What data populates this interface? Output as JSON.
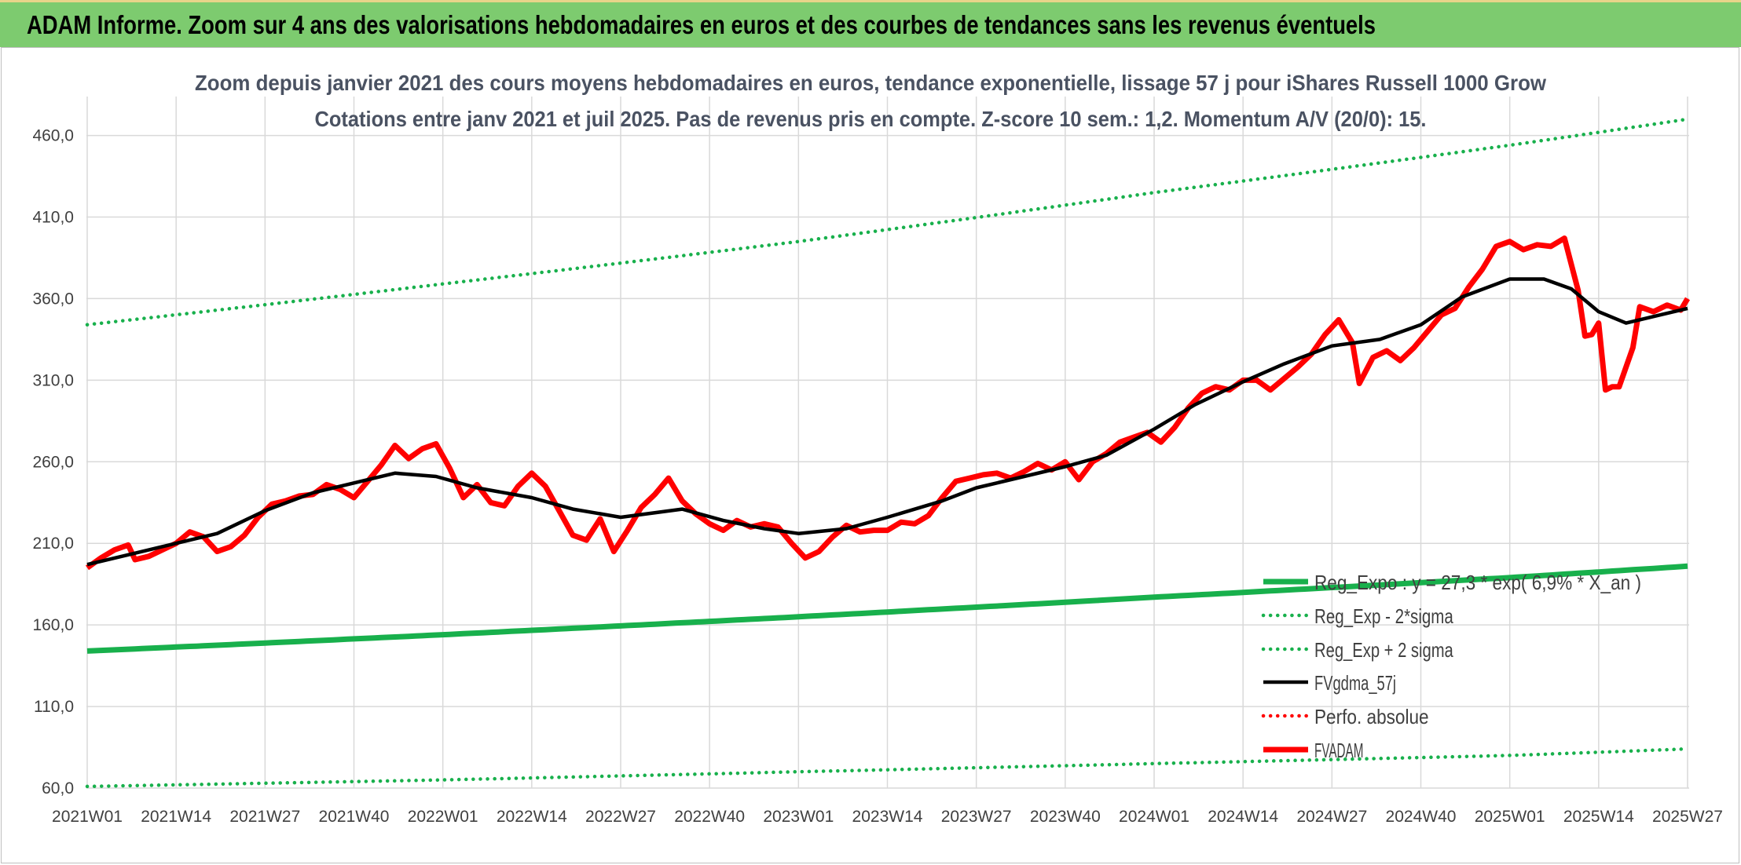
{
  "header": {
    "title": "ADAM Informe. Zoom sur 4 ans des valorisations hebdomadaires en euros et des courbes de tendances sans les revenus éventuels"
  },
  "colors": {
    "banner": "#7dcb6f",
    "trend_green": "#18b04c",
    "fvadam_red": "#ff0000",
    "fvgdma_black": "#000000",
    "grid": "#d9d9d9"
  },
  "chart_data": {
    "type": "line",
    "title": "Zoom depuis janvier 2021 des cours moyens hebdomadaires en euros, tendance exponentielle, lissage 57 j pour iShares Russell 1000 Grow",
    "subtitle": "Cotations entre janv 2021 et juil 2025. Pas de revenus pris en compte. Z-score 10 sem.: 1,2. Momentum A/V (20/0): 15.",
    "xlabel": "",
    "ylabel": "",
    "ylim": [
      60,
      480
    ],
    "yticks": [
      "60,0",
      "110,0",
      "160,0",
      "210,0",
      "260,0",
      "310,0",
      "360,0",
      "410,0",
      "460,0"
    ],
    "ytick_values": [
      60,
      110,
      160,
      210,
      260,
      310,
      360,
      410,
      460
    ],
    "xticks": [
      "2021W01",
      "2021W14",
      "2021W27",
      "2021W40",
      "2022W01",
      "2022W14",
      "2022W27",
      "2022W40",
      "2023W01",
      "2023W14",
      "2023W27",
      "2023W40",
      "2024W01",
      "2024W14",
      "2024W27",
      "2024W40",
      "2025W01",
      "2025W14",
      "2025W27"
    ],
    "grid": true,
    "legend_position": "bottom-right",
    "series": [
      {
        "name": "Reg_Expo : y = 27,3 * exp( 6,9% * X_an )",
        "style": "solid-thick",
        "color": "#18b04c",
        "points": [
          [
            "2021W01",
            144
          ],
          [
            "2022W01",
            154
          ],
          [
            "2023W01",
            165
          ],
          [
            "2024W01",
            177
          ],
          [
            "2025W01",
            189
          ],
          [
            "2025W27",
            196
          ]
        ]
      },
      {
        "name": "Reg_Exp - 2*sigma",
        "style": "dotted",
        "color": "#18b04c",
        "points": [
          [
            "2021W01",
            61
          ],
          [
            "2022W01",
            65
          ],
          [
            "2023W01",
            70
          ],
          [
            "2024W01",
            75
          ],
          [
            "2025W01",
            80
          ],
          [
            "2025W27",
            84
          ]
        ]
      },
      {
        "name": "Reg_Exp + 2 sigma",
        "style": "dotted",
        "color": "#18b04c",
        "points": [
          [
            "2021W01",
            344
          ],
          [
            "2022W01",
            369
          ],
          [
            "2023W01",
            395
          ],
          [
            "2024W01",
            425
          ],
          [
            "2025W01",
            454
          ],
          [
            "2025W27",
            470
          ]
        ]
      },
      {
        "name": "FVgdma_57j",
        "style": "solid",
        "color": "#000000",
        "points": [
          [
            "2021W01",
            197
          ],
          [
            "2021W07",
            203
          ],
          [
            "2021W14",
            210
          ],
          [
            "2021W20",
            216
          ],
          [
            "2021W27",
            230
          ],
          [
            "2021W34",
            241
          ],
          [
            "2021W40",
            247
          ],
          [
            "2021W46",
            253
          ],
          [
            "2021W52",
            251
          ],
          [
            "2022W06",
            244
          ],
          [
            "2022W14",
            238
          ],
          [
            "2022W20",
            231
          ],
          [
            "2022W27",
            226
          ],
          [
            "2022W36",
            231
          ],
          [
            "2022W42",
            224
          ],
          [
            "2022W48",
            219
          ],
          [
            "2023W01",
            216
          ],
          [
            "2023W08",
            219
          ],
          [
            "2023W14",
            226
          ],
          [
            "2023W22",
            236
          ],
          [
            "2023W27",
            244
          ],
          [
            "2023W34",
            251
          ],
          [
            "2023W40",
            257
          ],
          [
            "2023W46",
            264
          ],
          [
            "2024W01",
            280
          ],
          [
            "2024W07",
            295
          ],
          [
            "2024W14",
            309
          ],
          [
            "2024W20",
            320
          ],
          [
            "2024W27",
            331
          ],
          [
            "2024W34",
            335
          ],
          [
            "2024W40",
            344
          ],
          [
            "2024W46",
            361
          ],
          [
            "2025W01",
            372
          ],
          [
            "2025W06",
            372
          ],
          [
            "2025W10",
            366
          ],
          [
            "2025W14",
            352
          ],
          [
            "2025W18",
            345
          ],
          [
            "2025W23",
            350
          ],
          [
            "2025W27",
            354
          ]
        ]
      },
      {
        "name": "Perfo. absolue",
        "style": "dotted",
        "color": "#ff0000",
        "points": []
      },
      {
        "name": "FVADAM",
        "style": "solid-thick",
        "color": "#ff0000",
        "points": [
          [
            "2021W01",
            195
          ],
          [
            "2021W03",
            201
          ],
          [
            "2021W05",
            206
          ],
          [
            "2021W07",
            209
          ],
          [
            "2021W08",
            200
          ],
          [
            "2021W10",
            202
          ],
          [
            "2021W12",
            206
          ],
          [
            "2021W14",
            210
          ],
          [
            "2021W16",
            217
          ],
          [
            "2021W18",
            214
          ],
          [
            "2021W20",
            205
          ],
          [
            "2021W22",
            208
          ],
          [
            "2021W24",
            215
          ],
          [
            "2021W26",
            226
          ],
          [
            "2021W28",
            234
          ],
          [
            "2021W30",
            236
          ],
          [
            "2021W32",
            239
          ],
          [
            "2021W34",
            240
          ],
          [
            "2021W36",
            246
          ],
          [
            "2021W38",
            243
          ],
          [
            "2021W40",
            238
          ],
          [
            "2021W42",
            248
          ],
          [
            "2021W44",
            258
          ],
          [
            "2021W46",
            270
          ],
          [
            "2021W48",
            262
          ],
          [
            "2021W50",
            268
          ],
          [
            "2021W52",
            271
          ],
          [
            "2022W02",
            256
          ],
          [
            "2022W04",
            238
          ],
          [
            "2022W06",
            246
          ],
          [
            "2022W08",
            235
          ],
          [
            "2022W10",
            233
          ],
          [
            "2022W12",
            245
          ],
          [
            "2022W14",
            253
          ],
          [
            "2022W16",
            245
          ],
          [
            "2022W18",
            230
          ],
          [
            "2022W20",
            215
          ],
          [
            "2022W22",
            212
          ],
          [
            "2022W24",
            225
          ],
          [
            "2022W26",
            205
          ],
          [
            "2022W28",
            218
          ],
          [
            "2022W30",
            232
          ],
          [
            "2022W32",
            240
          ],
          [
            "2022W34",
            250
          ],
          [
            "2022W36",
            236
          ],
          [
            "2022W38",
            228
          ],
          [
            "2022W40",
            222
          ],
          [
            "2022W42",
            218
          ],
          [
            "2022W44",
            224
          ],
          [
            "2022W46",
            220
          ],
          [
            "2022W48",
            222
          ],
          [
            "2022W50",
            220
          ],
          [
            "2022W52",
            210
          ],
          [
            "2023W02",
            201
          ],
          [
            "2023W04",
            205
          ],
          [
            "2023W06",
            214
          ],
          [
            "2023W08",
            221
          ],
          [
            "2023W10",
            217
          ],
          [
            "2023W12",
            218
          ],
          [
            "2023W14",
            218
          ],
          [
            "2023W16",
            223
          ],
          [
            "2023W18",
            222
          ],
          [
            "2023W20",
            227
          ],
          [
            "2023W22",
            238
          ],
          [
            "2023W24",
            248
          ],
          [
            "2023W26",
            250
          ],
          [
            "2023W28",
            252
          ],
          [
            "2023W30",
            253
          ],
          [
            "2023W32",
            250
          ],
          [
            "2023W34",
            254
          ],
          [
            "2023W36",
            259
          ],
          [
            "2023W38",
            255
          ],
          [
            "2023W40",
            260
          ],
          [
            "2023W42",
            249
          ],
          [
            "2023W44",
            260
          ],
          [
            "2023W46",
            265
          ],
          [
            "2023W48",
            272
          ],
          [
            "2023W50",
            275
          ],
          [
            "2023W52",
            278
          ],
          [
            "2024W02",
            272
          ],
          [
            "2024W04",
            281
          ],
          [
            "2024W06",
            293
          ],
          [
            "2024W08",
            302
          ],
          [
            "2024W10",
            306
          ],
          [
            "2024W12",
            304
          ],
          [
            "2024W14",
            310
          ],
          [
            "2024W16",
            310
          ],
          [
            "2024W18",
            304
          ],
          [
            "2024W20",
            311
          ],
          [
            "2024W22",
            318
          ],
          [
            "2024W24",
            326
          ],
          [
            "2024W26",
            338
          ],
          [
            "2024W28",
            347
          ],
          [
            "2024W30",
            333
          ],
          [
            "2024W31",
            308
          ],
          [
            "2024W33",
            324
          ],
          [
            "2024W35",
            328
          ],
          [
            "2024W37",
            322
          ],
          [
            "2024W39",
            330
          ],
          [
            "2024W41",
            340
          ],
          [
            "2024W43",
            350
          ],
          [
            "2024W45",
            354
          ],
          [
            "2024W47",
            367
          ],
          [
            "2024W49",
            378
          ],
          [
            "2024W51",
            392
          ],
          [
            "2025W01",
            395
          ],
          [
            "2025W03",
            390
          ],
          [
            "2025W05",
            393
          ],
          [
            "2025W07",
            392
          ],
          [
            "2025W09",
            397
          ],
          [
            "2025W11",
            365
          ],
          [
            "2025W12",
            337
          ],
          [
            "2025W13",
            338
          ],
          [
            "2025W14",
            345
          ],
          [
            "2025W15",
            304
          ],
          [
            "2025W16",
            306
          ],
          [
            "2025W17",
            306
          ],
          [
            "2025W19",
            330
          ],
          [
            "2025W20",
            355
          ],
          [
            "2025W22",
            352
          ],
          [
            "2025W24",
            356
          ],
          [
            "2025W26",
            353
          ],
          [
            "2025W27",
            360
          ]
        ]
      }
    ]
  }
}
